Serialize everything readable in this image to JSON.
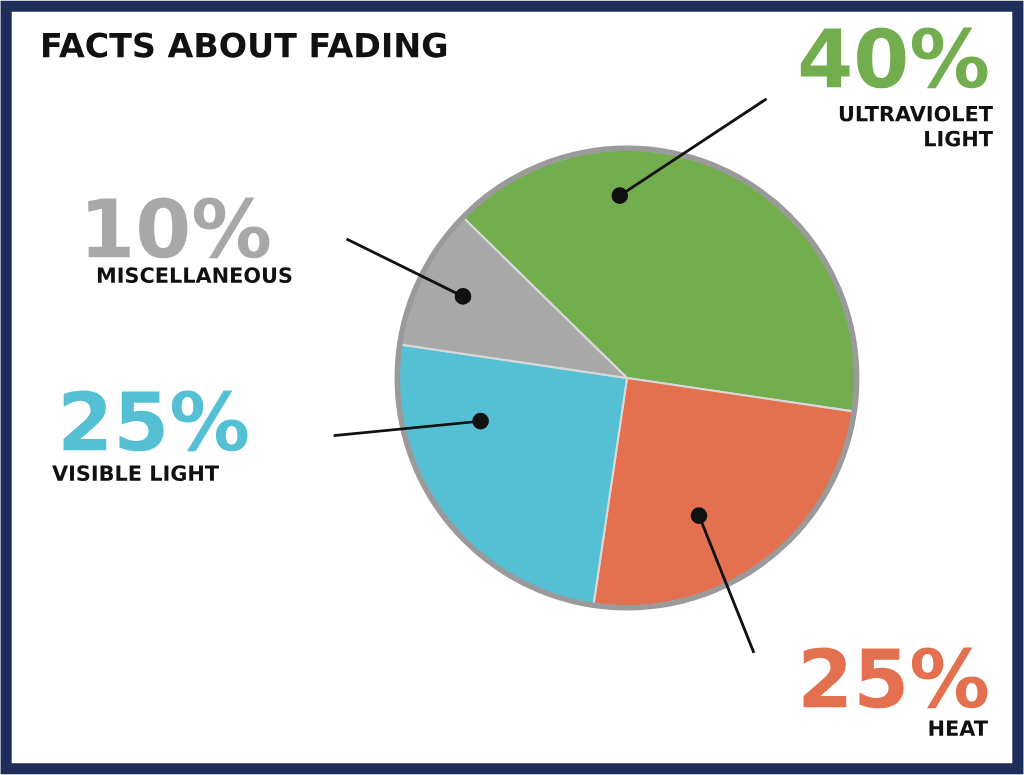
{
  "chart_data": {
    "type": "pie",
    "title": "FACTS ABOUT FADING",
    "categories": [
      "ULTRAVIOLET\nLIGHT",
      "HEAT",
      "VISIBLE LIGHT",
      "MISCELLANEOUS"
    ],
    "values": [
      40,
      25,
      25,
      10
    ],
    "value_labels": [
      "40%",
      "25%",
      "25%",
      "10%"
    ],
    "colors": [
      "#72ad4e",
      "#e3704f",
      "#55bfd3",
      "#a8a8a8"
    ]
  }
}
